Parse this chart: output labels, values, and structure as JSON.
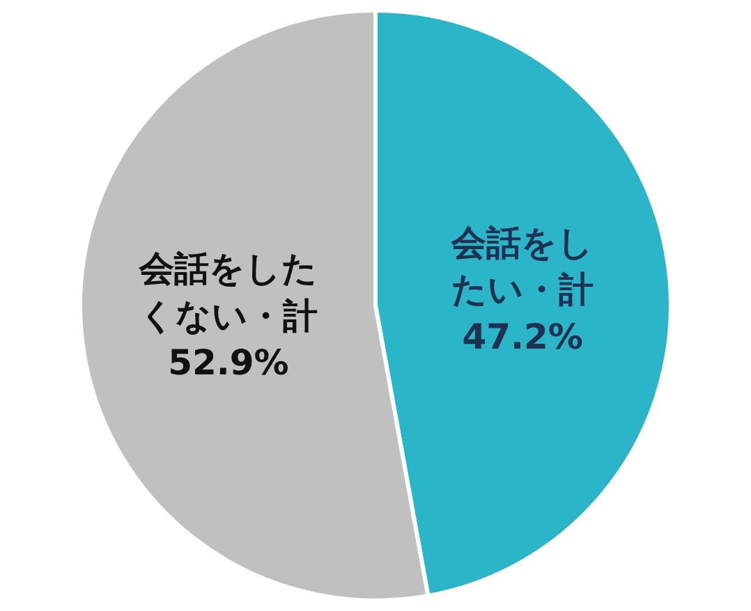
{
  "chart_data": {
    "type": "pie",
    "categories": [
      "会話をしたい・計",
      "会話をしたくない・計"
    ],
    "values": [
      47.2,
      52.9
    ],
    "colors": [
      "#2bb5c8",
      "#c0c0c0"
    ],
    "value_labels": [
      "47.2%",
      "52.9%"
    ],
    "legend": false
  }
}
